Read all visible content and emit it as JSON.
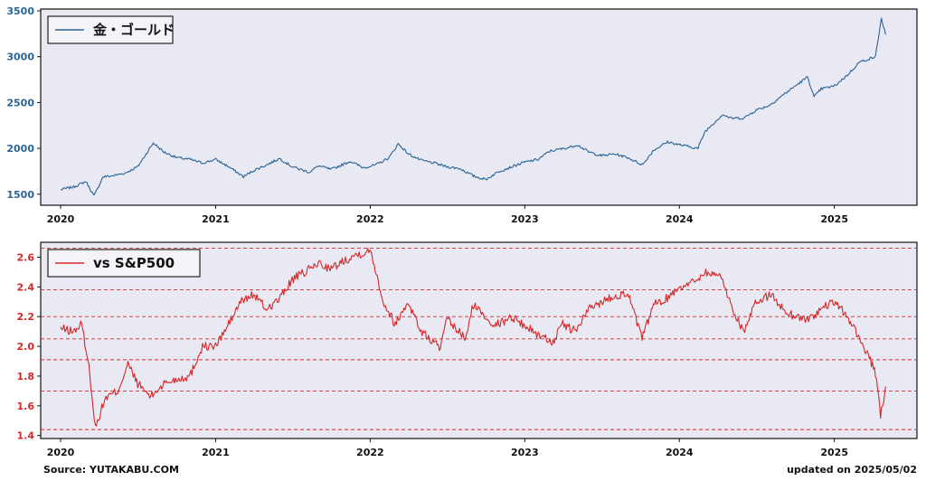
{
  "footer": {
    "source": "Source: YUTAKABU.COM",
    "updated": "updated on 2025/05/02"
  },
  "colors": {
    "gold": "#2a6496",
    "ratio": "#d62728",
    "plot_bg": "#e9e9f3"
  },
  "chart_data": [
    {
      "type": "line",
      "legend": "金・ゴールド",
      "legend_placement": "top-left",
      "color": "#2a6496",
      "grid": false,
      "xlim": [
        "2019-11-15",
        "2025-07-15"
      ],
      "ylim": [
        1380,
        3520
      ],
      "yticks": [
        1500,
        2000,
        2500,
        3000,
        3500
      ],
      "xticks": [
        "2020",
        "2021",
        "2022",
        "2023",
        "2024",
        "2025"
      ],
      "x": [
        "2020-01-01",
        "2020-02-01",
        "2020-03-01",
        "2020-03-20",
        "2020-04-10",
        "2020-05-01",
        "2020-06-01",
        "2020-07-01",
        "2020-08-07",
        "2020-09-01",
        "2020-10-01",
        "2020-11-01",
        "2020-12-01",
        "2021-01-01",
        "2021-02-01",
        "2021-03-08",
        "2021-04-01",
        "2021-05-01",
        "2021-06-01",
        "2021-07-01",
        "2021-08-10",
        "2021-09-01",
        "2021-10-01",
        "2021-11-15",
        "2021-12-15",
        "2022-01-15",
        "2022-02-15",
        "2022-03-08",
        "2022-04-01",
        "2022-05-01",
        "2022-06-01",
        "2022-07-01",
        "2022-08-01",
        "2022-09-01",
        "2022-10-01",
        "2022-11-01",
        "2022-12-01",
        "2023-01-01",
        "2023-02-01",
        "2023-03-01",
        "2023-04-15",
        "2023-05-05",
        "2023-06-01",
        "2023-07-01",
        "2023-08-01",
        "2023-09-01",
        "2023-10-06",
        "2023-11-01",
        "2023-12-04",
        "2024-01-01",
        "2024-02-14",
        "2024-03-01",
        "2024-04-12",
        "2024-05-01",
        "2024-06-01",
        "2024-07-01",
        "2024-08-01",
        "2024-09-01",
        "2024-10-30",
        "2024-11-14",
        "2024-12-01",
        "2025-01-01",
        "2025-02-01",
        "2025-03-01",
        "2025-04-08",
        "2025-04-22",
        "2025-05-02"
      ],
      "y": [
        1550,
        1580,
        1640,
        1480,
        1690,
        1700,
        1730,
        1800,
        2060,
        1960,
        1900,
        1880,
        1840,
        1880,
        1800,
        1690,
        1760,
        1820,
        1890,
        1800,
        1740,
        1810,
        1770,
        1860,
        1790,
        1820,
        1900,
        2050,
        1940,
        1870,
        1840,
        1800,
        1780,
        1700,
        1660,
        1750,
        1800,
        1850,
        1880,
        1970,
        2010,
        2040,
        1960,
        1920,
        1940,
        1900,
        1820,
        1980,
        2070,
        2040,
        2000,
        2180,
        2370,
        2330,
        2330,
        2420,
        2470,
        2580,
        2780,
        2560,
        2650,
        2680,
        2800,
        2940,
        3000,
        3420,
        3240
      ]
    },
    {
      "type": "line",
      "legend": "vs S&P500",
      "legend_placement": "top-left",
      "color": "#d62728",
      "grid": "horizontal-dashed",
      "xlim": [
        "2019-11-15",
        "2025-07-15"
      ],
      "ylim": [
        1.38,
        2.7
      ],
      "yticks": [
        1.4,
        1.6,
        1.8,
        2.0,
        2.2,
        2.4,
        2.6
      ],
      "xticks": [
        "2020",
        "2021",
        "2022",
        "2023",
        "2024",
        "2025"
      ],
      "hlines": [
        2.66,
        2.38,
        2.2,
        2.05,
        1.91,
        1.7,
        1.44
      ],
      "x": [
        "2020-01-01",
        "2020-02-01",
        "2020-02-20",
        "2020-03-10",
        "2020-03-23",
        "2020-04-15",
        "2020-05-15",
        "2020-06-08",
        "2020-07-01",
        "2020-08-01",
        "2020-09-01",
        "2020-10-01",
        "2020-11-01",
        "2020-12-01",
        "2021-01-01",
        "2021-02-01",
        "2021-03-01",
        "2021-04-01",
        "2021-05-01",
        "2021-06-01",
        "2021-07-01",
        "2021-08-01",
        "2021-09-01",
        "2021-10-01",
        "2021-11-01",
        "2021-12-01",
        "2022-01-03",
        "2022-02-01",
        "2022-03-01",
        "2022-04-01",
        "2022-05-01",
        "2022-06-16",
        "2022-07-01",
        "2022-08-15",
        "2022-09-01",
        "2022-10-15",
        "2022-11-01",
        "2022-12-01",
        "2023-01-01",
        "2023-02-01",
        "2023-03-09",
        "2023-04-01",
        "2023-05-01",
        "2023-06-01",
        "2023-07-01",
        "2023-08-01",
        "2023-09-01",
        "2023-10-05",
        "2023-11-01",
        "2023-12-01",
        "2024-01-01",
        "2024-02-01",
        "2024-03-01",
        "2024-04-10",
        "2024-05-01",
        "2024-06-01",
        "2024-07-01",
        "2024-08-05",
        "2024-09-01",
        "2024-10-01",
        "2024-11-01",
        "2024-12-01",
        "2025-01-01",
        "2025-02-01",
        "2025-02-20",
        "2025-03-15",
        "2025-04-08",
        "2025-04-20",
        "2025-05-02"
      ],
      "y": [
        2.12,
        2.1,
        2.15,
        1.82,
        1.45,
        1.65,
        1.7,
        1.88,
        1.75,
        1.66,
        1.75,
        1.78,
        1.8,
        2.0,
        2.0,
        2.15,
        2.3,
        2.35,
        2.25,
        2.32,
        2.45,
        2.5,
        2.56,
        2.52,
        2.58,
        2.62,
        2.64,
        2.3,
        2.15,
        2.3,
        2.1,
        1.99,
        2.18,
        2.05,
        2.28,
        2.16,
        2.15,
        2.2,
        2.14,
        2.08,
        2.03,
        2.15,
        2.1,
        2.25,
        2.3,
        2.34,
        2.36,
        2.05,
        2.28,
        2.32,
        2.4,
        2.43,
        2.5,
        2.47,
        2.28,
        2.1,
        2.3,
        2.35,
        2.25,
        2.2,
        2.18,
        2.25,
        2.3,
        2.2,
        2.1,
        1.98,
        1.82,
        1.53,
        1.73
      ]
    }
  ]
}
